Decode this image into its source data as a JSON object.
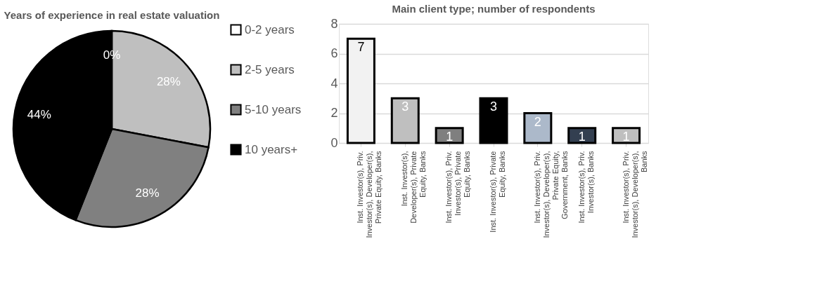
{
  "chart_data": [
    {
      "type": "pie",
      "title": "Years of experience in real estate valuation",
      "categories": [
        "0-2 years",
        "2-5 years",
        "5-10 years",
        "10 years+"
      ],
      "values": [
        0,
        28,
        28,
        44
      ],
      "value_labels": [
        "0%",
        "28%",
        "28%",
        "44%"
      ],
      "colors": [
        "#ffffff",
        "#bfbfbf",
        "#808080",
        "#000000"
      ],
      "legend": "right"
    },
    {
      "type": "bar",
      "title": "Main client type; number of respondents",
      "categories": [
        "Inst. Investor(s), Priv. Investor(s), Developer(s), Private Equity, Banks",
        "Inst. Investor(s), Developer(s), Private Equity, Banks",
        "Inst. Investor(s), Priv. Investor(s), Private Equity, Banks",
        "Inst. Investor(s), Private Equity, Banks",
        "Inst. Investor(s), Priv. Investor(s), Developer(s), Private Equity, Government, Banks",
        "Inst. Investor(s), Priv. Investor(s), Banks",
        "Inst. Investor(s), Priv. Investor(s), Developer(s), Banks"
      ],
      "values": [
        7,
        3,
        1,
        3,
        2,
        1,
        1
      ],
      "colors": [
        "#f2f2f2",
        "#bfbfbf",
        "#7f7f7f",
        "#000000",
        "#acb9ca",
        "#333f50",
        "#bfbfbf"
      ],
      "ylim": [
        0,
        8
      ],
      "yticks": [
        0,
        2,
        4,
        6,
        8
      ],
      "grid": "y",
      "data_labels": true
    }
  ]
}
